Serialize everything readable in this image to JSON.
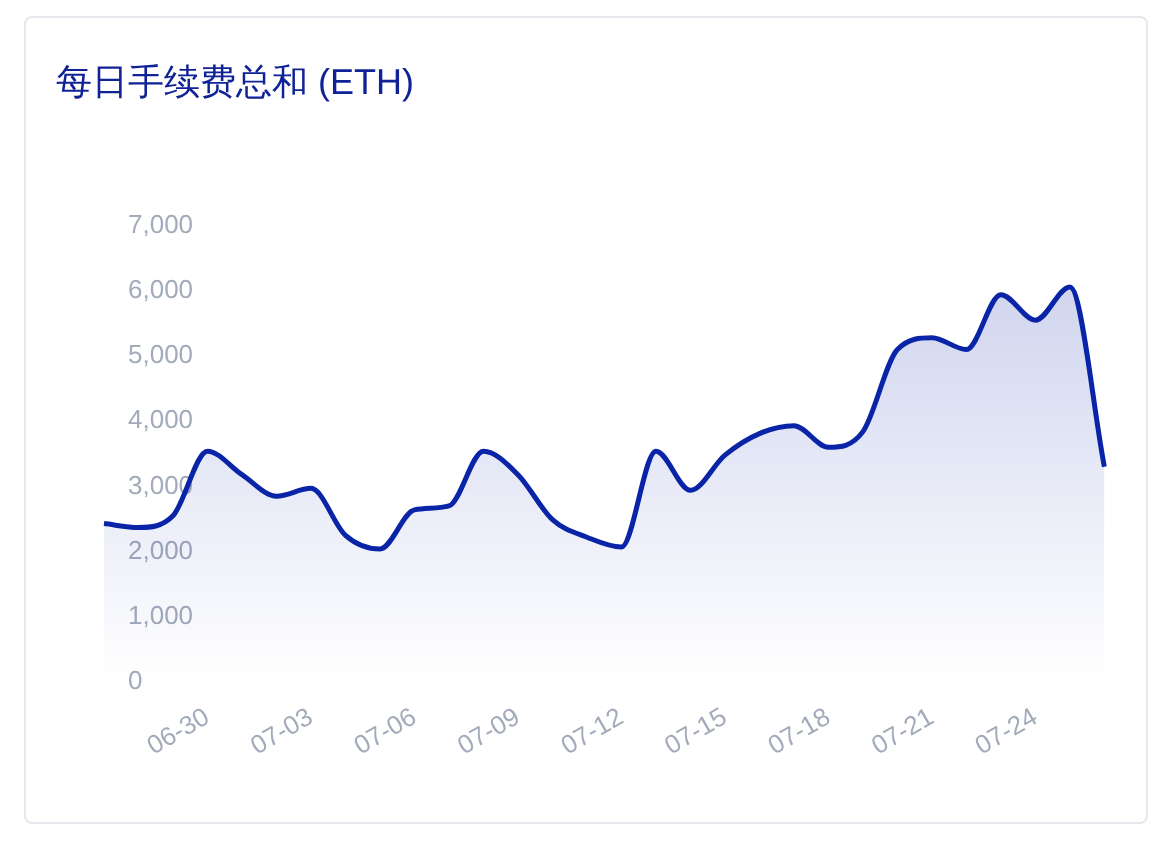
{
  "chart_data": {
    "type": "area",
    "title": "每日手续费总和 (ETH)",
    "categories": [
      null,
      null,
      null,
      "06-30",
      null,
      null,
      "07-03",
      null,
      null,
      "07-06",
      null,
      null,
      "07-09",
      null,
      null,
      "07-12",
      null,
      null,
      "07-15",
      null,
      null,
      "07-18",
      null,
      null,
      "07-21",
      null,
      null,
      "07-24",
      null,
      null
    ],
    "series": [
      {
        "color": "#0a24a8",
        "values": [
          2430,
          2370,
          2550,
          3540,
          3180,
          2850,
          2970,
          2250,
          2040,
          2640,
          2700,
          3540,
          3180,
          2490,
          2220,
          2070,
          3540,
          2940,
          3480,
          3810,
          3930,
          3600,
          3840,
          5100,
          5280,
          5100,
          5940,
          5550,
          6060,
          3300
        ]
      }
    ],
    "ylim": [
      0,
      7000
    ],
    "yticks": [
      0,
      {
        "value": 1000,
        "label": "1,000"
      },
      {
        "value": 2000,
        "label": "2,000"
      },
      {
        "value": 3000,
        "label": "3,000"
      },
      {
        "value": 4000,
        "label": "4,000"
      },
      {
        "value": 5000,
        "label": "5,000"
      },
      {
        "value": 6000,
        "label": "6,000"
      },
      {
        "value": 7000,
        "label": "7,000"
      }
    ],
    "grid": false,
    "legend": false,
    "marker": "none",
    "line_style": "solid"
  }
}
